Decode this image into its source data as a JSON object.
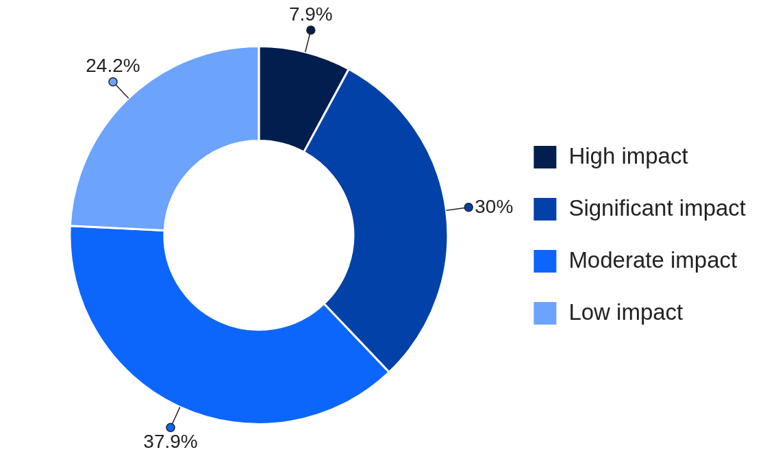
{
  "chart_data": {
    "type": "donut",
    "categories": [
      "High impact",
      "Significant impact",
      "Moderate impact",
      "Low impact"
    ],
    "values": [
      7.9,
      30,
      37.9,
      24.2
    ],
    "colors": [
      "#011e4e",
      "#0141a8",
      "#0d66fb",
      "#6ba3fd"
    ],
    "value_labels": [
      "7.9%",
      "30%",
      "37.9%",
      "24.2%"
    ],
    "legend": "right"
  }
}
